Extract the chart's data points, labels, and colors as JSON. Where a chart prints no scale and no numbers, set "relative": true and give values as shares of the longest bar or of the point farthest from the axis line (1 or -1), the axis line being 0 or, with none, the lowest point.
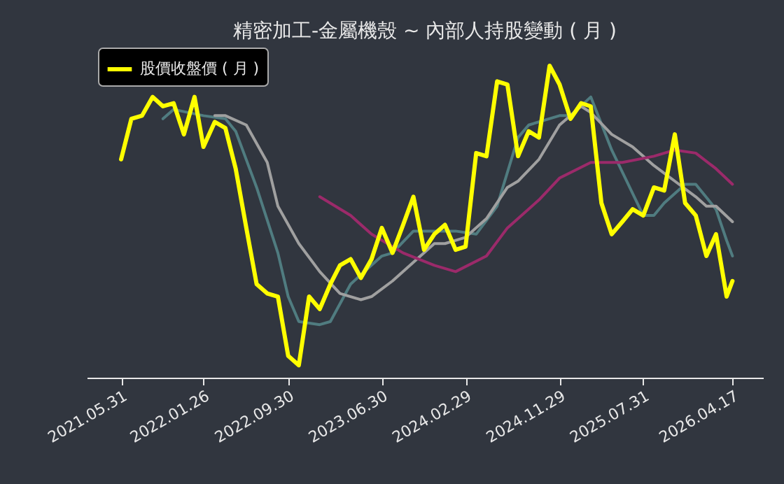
{
  "chart_data": {
    "type": "line",
    "title": "精密加工-金屬機殼 ~ 內部人持股變動 ( 月 )",
    "relative": true,
    "legend": "top left",
    "grid": false,
    "marker": "none",
    "line_style": "solid",
    "x": [
      "2021-05-31",
      "2021-06-30",
      "2021-07-31",
      "2021-08-31",
      "2021-09-30",
      "2021-10-31",
      "2021-11-30",
      "2021-12-31",
      "2022-01-26",
      "2022-02-28",
      "2022-03-31",
      "2022-04-30",
      "2022-05-31",
      "2022-06-30",
      "2022-07-31",
      "2022-08-31",
      "2022-09-30",
      "2022-10-31",
      "2022-11-30",
      "2022-12-31",
      "2023-01-31",
      "2023-02-28",
      "2023-03-31",
      "2023-04-30",
      "2023-05-31",
      "2023-06-30",
      "2023-07-31",
      "2023-08-31",
      "2023-09-30",
      "2023-10-31",
      "2023-11-30",
      "2023-12-31",
      "2024-01-31",
      "2024-02-29",
      "2024-03-31",
      "2024-04-30",
      "2024-05-31",
      "2024-06-30",
      "2024-07-31",
      "2024-08-31",
      "2024-09-30",
      "2024-10-31",
      "2024-11-29",
      "2024-12-31",
      "2025-01-31",
      "2025-02-28",
      "2025-03-31",
      "2025-04-30",
      "2025-05-31",
      "2025-06-30",
      "2025-07-31",
      "2025-08-31",
      "2025-09-30",
      "2025-10-31",
      "2025-11-30",
      "2025-12-31",
      "2026-01-31",
      "2026-02-28",
      "2026-03-31",
      "2026-04-17"
    ],
    "xlim": [
      "2021-02-20",
      "2026-07-15"
    ],
    "xticks": [
      {
        "value": "2021-05-31",
        "label": "2021.05.31"
      },
      {
        "value": "2022-01-26",
        "label": "2022.01.26"
      },
      {
        "value": "2022-09-30",
        "label": "2022.09.30"
      },
      {
        "value": "2023-06-30",
        "label": "2023.06.30"
      },
      {
        "value": "2024-02-29",
        "label": "2024.02.29"
      },
      {
        "value": "2024-11-29",
        "label": "2024.11.29"
      },
      {
        "value": "2025-07-31",
        "label": "2025.07.31"
      },
      {
        "value": "2026-04-17",
        "label": "2026.04.17"
      }
    ],
    "tick_labels": "x",
    "series": [
      {
        "color": "#507c80",
        "x": [
          "2021-09-30",
          "2021-10-31",
          "2022-01-26",
          "2022-03-31",
          "2022-04-30",
          "2022-06-30",
          "2022-08-31",
          "2022-09-30",
          "2022-10-31",
          "2022-12-31",
          "2023-01-31",
          "2023-03-31",
          "2023-04-30",
          "2023-06-30",
          "2023-07-31",
          "2023-09-30",
          "2023-11-30",
          "2024-01-31",
          "2024-03-31",
          "2024-05-31",
          "2024-07-31",
          "2024-08-31",
          "2024-11-29",
          "2024-12-31",
          "2025-02-28",
          "2025-04-30",
          "2025-07-31",
          "2025-08-31",
          "2025-09-30",
          "2025-11-30",
          "2025-12-31",
          "2026-02-28",
          "2026-03-31",
          "2026-04-17"
        ],
        "values": [
          0.83,
          0.86,
          0.84,
          0.83,
          0.79,
          0.61,
          0.4,
          0.26,
          0.18,
          0.17,
          0.18,
          0.3,
          0.33,
          0.39,
          0.4,
          0.47,
          0.47,
          0.47,
          0.46,
          0.55,
          0.77,
          0.81,
          0.84,
          0.84,
          0.9,
          0.73,
          0.52,
          0.52,
          0.56,
          0.62,
          0.62,
          0.54,
          0.44,
          0.39
        ]
      },
      {
        "color": "#a0a0a0",
        "x": [
          "2022-02-28",
          "2022-03-31",
          "2022-05-31",
          "2022-07-31",
          "2022-08-31",
          "2022-10-31",
          "2022-12-31",
          "2023-02-28",
          "2023-04-30",
          "2023-05-31",
          "2023-07-31",
          "2023-09-30",
          "2023-11-30",
          "2023-12-31",
          "2024-02-29",
          "2024-04-30",
          "2024-06-30",
          "2024-07-31",
          "2024-09-30",
          "2024-11-29",
          "2025-01-31",
          "2025-02-28",
          "2025-04-30",
          "2025-06-30",
          "2025-08-31",
          "2025-10-31",
          "2025-12-31",
          "2026-01-31",
          "2026-02-28",
          "2026-04-17"
        ],
        "values": [
          0.84,
          0.84,
          0.81,
          0.69,
          0.55,
          0.43,
          0.34,
          0.27,
          0.25,
          0.26,
          0.31,
          0.37,
          0.43,
          0.43,
          0.45,
          0.51,
          0.61,
          0.63,
          0.7,
          0.81,
          0.87,
          0.85,
          0.78,
          0.74,
          0.68,
          0.63,
          0.58,
          0.55,
          0.55,
          0.5
        ]
      },
      {
        "color": "#9b2a6a",
        "x": [
          "2022-12-31",
          "2023-03-31",
          "2023-05-31",
          "2023-08-31",
          "2023-11-30",
          "2024-01-31",
          "2024-04-30",
          "2024-06-30",
          "2024-09-30",
          "2024-11-29",
          "2025-02-28",
          "2025-05-31",
          "2025-08-31",
          "2025-10-31",
          "2025-12-31",
          "2026-02-28",
          "2026-04-17"
        ],
        "values": [
          0.58,
          0.52,
          0.46,
          0.4,
          0.36,
          0.34,
          0.39,
          0.48,
          0.57,
          0.64,
          0.69,
          0.69,
          0.71,
          0.73,
          0.72,
          0.67,
          0.62
        ]
      },
      {
        "name": "股價收盤價 ( 月 )",
        "color": "#ffff00",
        "values": [
          0.7,
          0.83,
          0.84,
          0.9,
          0.87,
          0.88,
          0.78,
          0.9,
          0.74,
          0.82,
          0.8,
          0.67,
          0.48,
          0.3,
          0.27,
          0.26,
          0.07,
          0.04,
          0.26,
          0.22,
          0.3,
          0.36,
          0.38,
          0.32,
          0.38,
          0.48,
          0.4,
          0.49,
          0.58,
          0.41,
          0.46,
          0.49,
          0.41,
          0.42,
          0.72,
          0.71,
          0.95,
          0.94,
          0.71,
          0.79,
          0.77,
          1.0,
          0.94,
          0.83,
          0.88,
          0.87,
          0.56,
          0.46,
          0.5,
          0.54,
          0.52,
          0.61,
          0.6,
          0.78,
          0.56,
          0.52,
          0.39,
          0.46,
          0.26,
          0.31
        ]
      }
    ]
  }
}
